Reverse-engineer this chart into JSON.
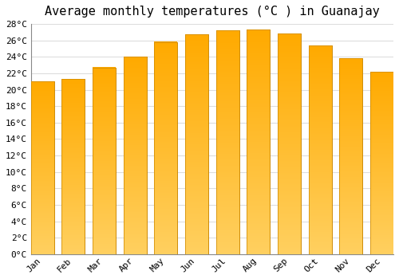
{
  "title": "Average monthly temperatures (°C ) in Guanajay",
  "months": [
    "Jan",
    "Feb",
    "Mar",
    "Apr",
    "May",
    "Jun",
    "Jul",
    "Aug",
    "Sep",
    "Oct",
    "Nov",
    "Dec"
  ],
  "temperatures": [
    21.0,
    21.3,
    22.7,
    24.0,
    25.8,
    26.7,
    27.2,
    27.3,
    26.8,
    25.4,
    23.8,
    22.2
  ],
  "bar_color_top": "#FFAA00",
  "bar_color_bottom": "#FFD060",
  "bar_edge_color": "#CC8800",
  "background_color": "#FFFFFF",
  "grid_color": "#DDDDDD",
  "ylim": [
    0,
    28
  ],
  "ytick_values": [
    0,
    2,
    4,
    6,
    8,
    10,
    12,
    14,
    16,
    18,
    20,
    22,
    24,
    26,
    28
  ],
  "title_fontsize": 11,
  "tick_fontsize": 8,
  "font_family": "monospace"
}
